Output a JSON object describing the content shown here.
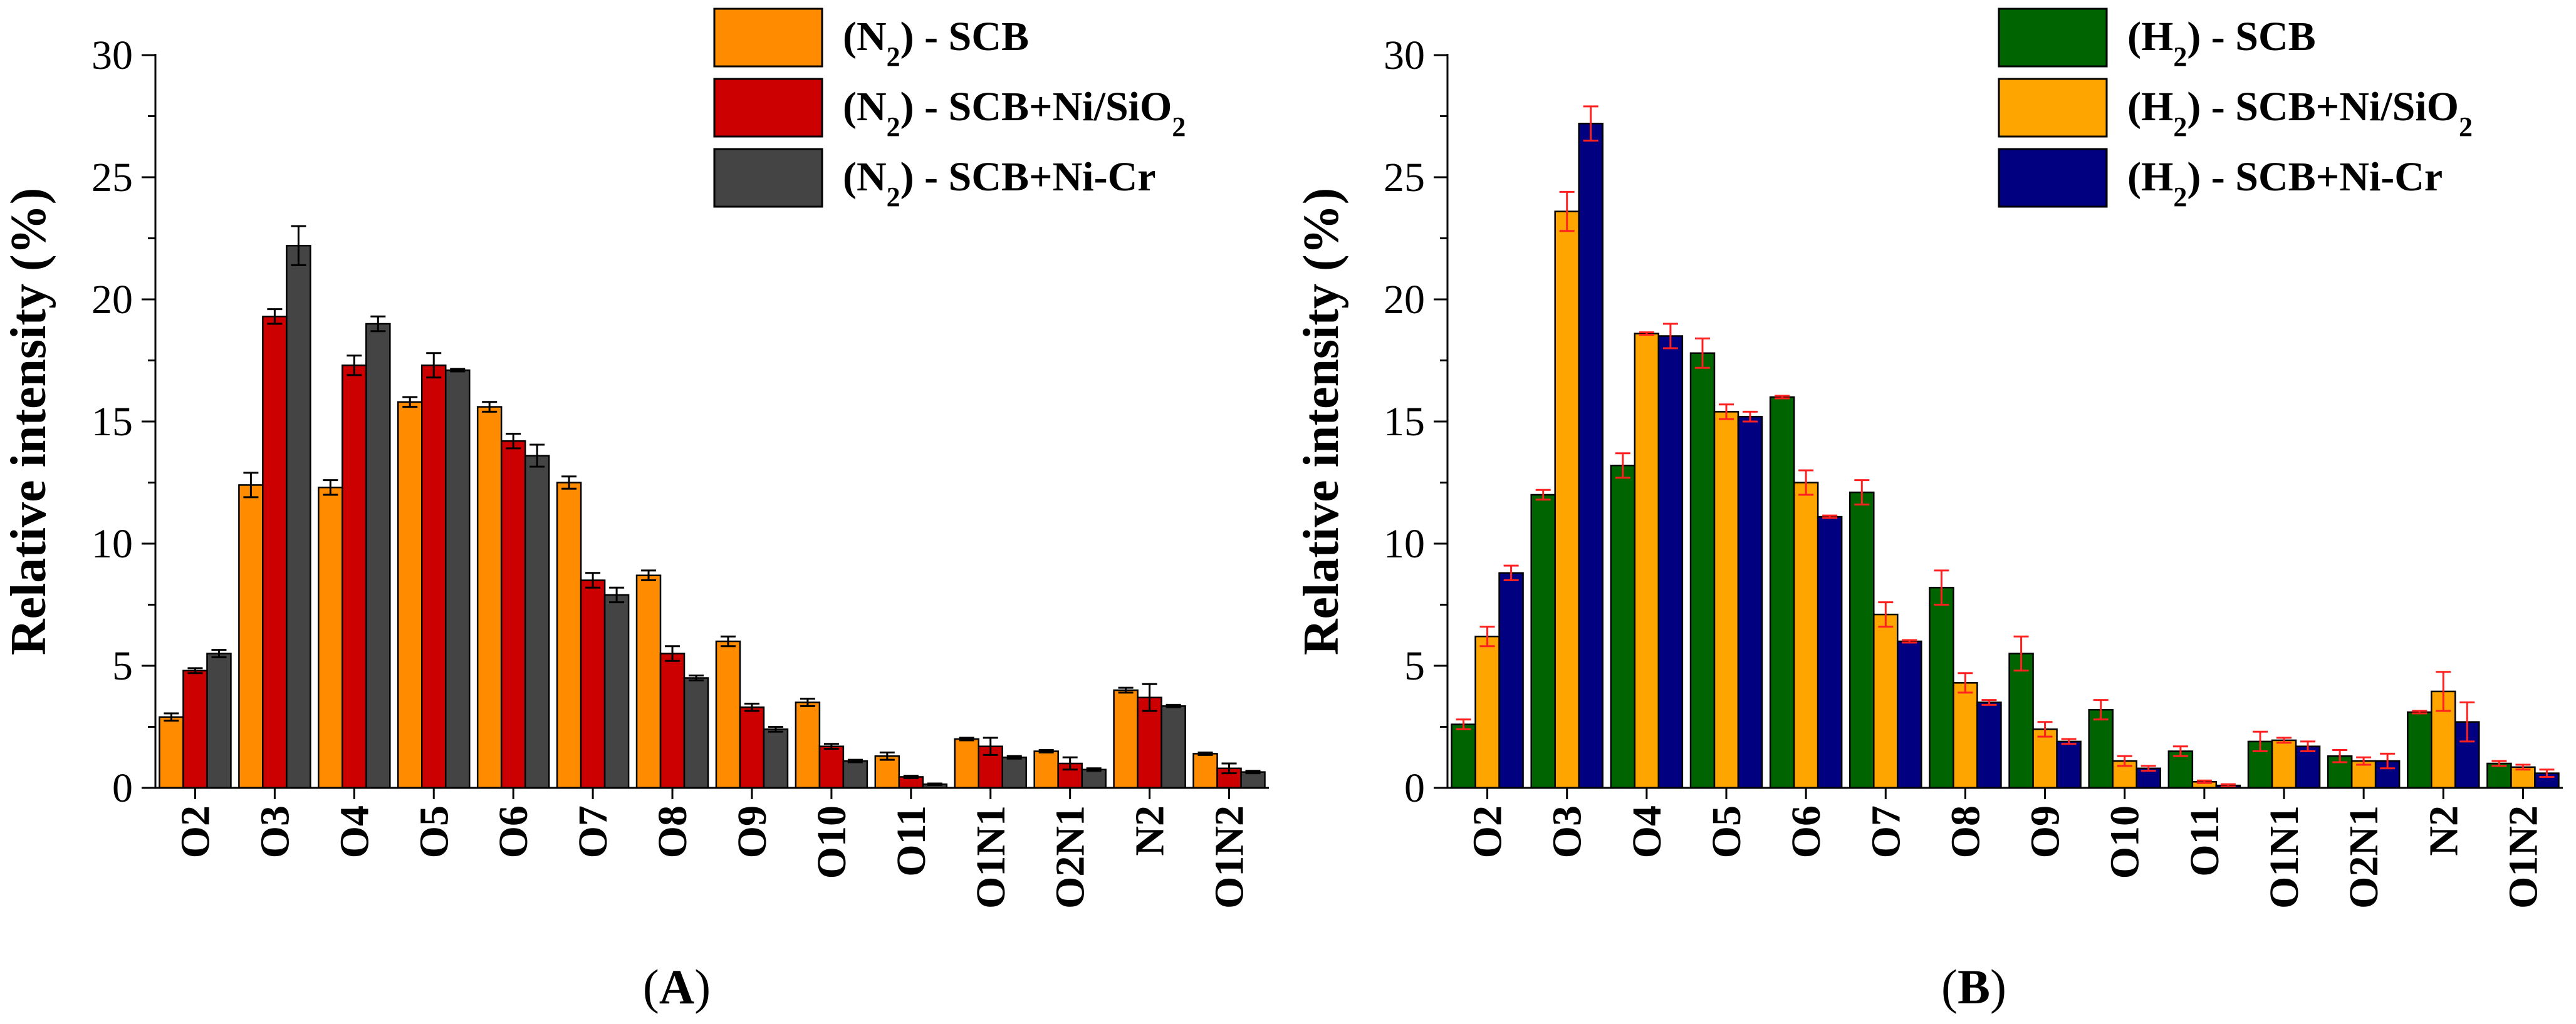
{
  "chart_data": [
    {
      "type": "bar",
      "panel_label": "(A)",
      "ylabel": "Relative intensity (%)",
      "xlabel": "",
      "ylim": [
        0,
        30
      ],
      "yticks": [
        "0",
        "5",
        "10",
        "15",
        "20",
        "25",
        "30"
      ],
      "categories": [
        "O2",
        "O3",
        "O4",
        "O5",
        "O6",
        "O7",
        "O8",
        "O9",
        "O10",
        "O11",
        "O1N1",
        "O2N1",
        "N2",
        "O1N2"
      ],
      "error_bar_color": "#000000",
      "legend_position": "top-right",
      "series": [
        {
          "name": "(N2) - SCB",
          "gas": "N",
          "gas_sub": "2",
          "rest": " - SCB",
          "rest_sub": "",
          "color": "#FF8C00",
          "values": [
            2.9,
            12.4,
            12.3,
            15.8,
            15.6,
            12.5,
            8.7,
            6.0,
            3.5,
            1.3,
            2.0,
            1.5,
            4.0,
            1.4
          ],
          "errors": [
            0.15,
            0.5,
            0.3,
            0.2,
            0.2,
            0.25,
            0.2,
            0.2,
            0.15,
            0.15,
            0.05,
            0.05,
            0.1,
            0.05
          ]
        },
        {
          "name": "(N2) - SCB+Ni/SiO2",
          "gas": "N",
          "gas_sub": "2",
          "rest": " - SCB+Ni/SiO",
          "rest_sub": "2",
          "color": "#CC0000",
          "values": [
            4.8,
            19.3,
            17.3,
            17.3,
            14.2,
            8.5,
            5.5,
            3.3,
            1.7,
            0.45,
            1.7,
            1.0,
            3.7,
            0.8
          ],
          "errors": [
            0.1,
            0.3,
            0.4,
            0.5,
            0.3,
            0.3,
            0.3,
            0.15,
            0.1,
            0.05,
            0.35,
            0.25,
            0.55,
            0.2
          ]
        },
        {
          "name": "(N2) - SCB+Ni-Cr",
          "gas": "N",
          "gas_sub": "2",
          "rest": " - SCB+Ni-Cr",
          "rest_sub": "",
          "color": "#444444",
          "values": [
            5.5,
            22.2,
            19.0,
            17.1,
            13.6,
            7.9,
            4.5,
            2.4,
            1.1,
            0.15,
            1.25,
            0.75,
            3.35,
            0.65
          ],
          "errors": [
            0.15,
            0.8,
            0.3,
            0.05,
            0.45,
            0.3,
            0.1,
            0.1,
            0.05,
            0.03,
            0.05,
            0.05,
            0.05,
            0.05
          ]
        }
      ]
    },
    {
      "type": "bar",
      "panel_label": "(B)",
      "ylabel": "Relative intensity (%)",
      "xlabel": "",
      "ylim": [
        0,
        30
      ],
      "yticks": [
        "0",
        "5",
        "10",
        "15",
        "20",
        "25",
        "30"
      ],
      "categories": [
        "O2",
        "O3",
        "O4",
        "O5",
        "O6",
        "O7",
        "O8",
        "O9",
        "O10",
        "O11",
        "O1N1",
        "O2N1",
        "N2",
        "O1N2"
      ],
      "error_bar_color": "#FF2020",
      "legend_position": "top-right",
      "series": [
        {
          "name": "(H2) - SCB",
          "gas": "H",
          "gas_sub": "2",
          "rest": " - SCB",
          "rest_sub": "",
          "color": "#006400",
          "values": [
            2.6,
            12.0,
            13.2,
            17.8,
            16.0,
            12.1,
            8.2,
            5.5,
            3.2,
            1.5,
            1.9,
            1.3,
            3.1,
            1.0
          ],
          "errors": [
            0.2,
            0.2,
            0.5,
            0.6,
            0.05,
            0.5,
            0.7,
            0.7,
            0.4,
            0.2,
            0.4,
            0.25,
            0.05,
            0.1
          ]
        },
        {
          "name": "(H2) - SCB+Ni/SiO2",
          "gas": "H",
          "gas_sub": "2",
          "rest": " - SCB+Ni/SiO",
          "rest_sub": "2",
          "color": "#FFA500",
          "values": [
            6.2,
            23.6,
            18.6,
            15.4,
            12.5,
            7.1,
            4.3,
            2.4,
            1.1,
            0.25,
            1.95,
            1.1,
            3.95,
            0.85
          ],
          "errors": [
            0.4,
            0.8,
            0.05,
            0.3,
            0.5,
            0.5,
            0.4,
            0.3,
            0.2,
            0.05,
            0.1,
            0.15,
            0.8,
            0.1
          ]
        },
        {
          "name": "(H2) - SCB+Ni-Cr",
          "gas": "H",
          "gas_sub": "2",
          "rest": " - SCB+Ni-Cr",
          "rest_sub": "",
          "color": "#000080",
          "values": [
            8.8,
            27.2,
            18.5,
            15.2,
            11.1,
            6.0,
            3.5,
            1.9,
            0.8,
            0.1,
            1.7,
            1.1,
            2.7,
            0.6
          ],
          "errors": [
            0.3,
            0.7,
            0.5,
            0.2,
            0.05,
            0.05,
            0.1,
            0.1,
            0.1,
            0.05,
            0.2,
            0.3,
            0.8,
            0.15
          ]
        }
      ]
    }
  ]
}
